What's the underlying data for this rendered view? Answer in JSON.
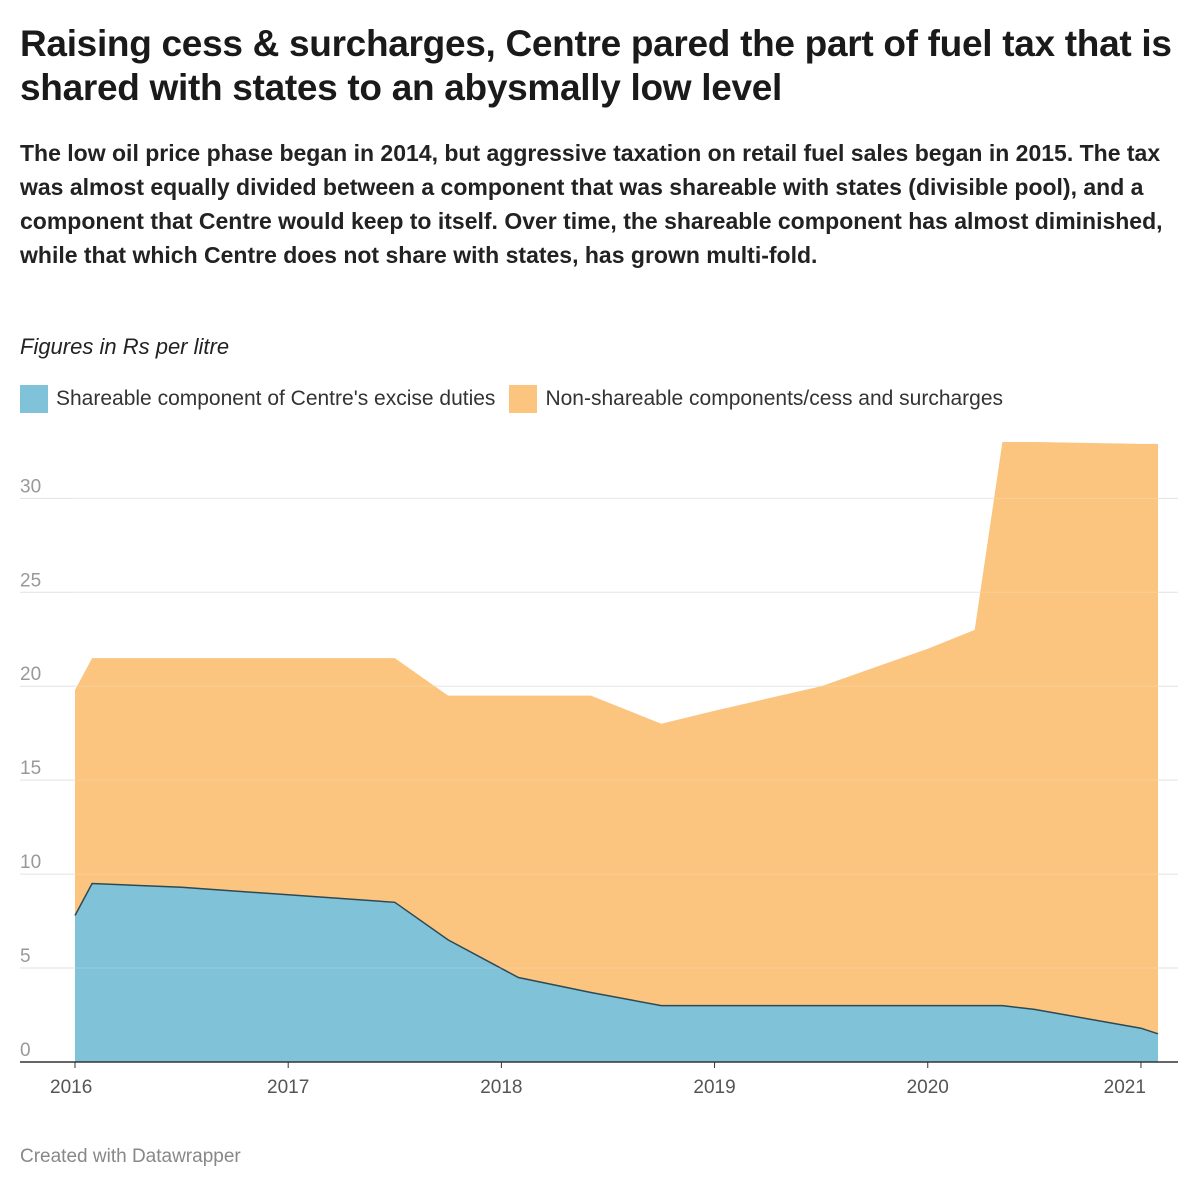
{
  "header": {
    "title": "Raising cess & surcharges, Centre pared the part of fuel tax that is shared with states to an abysmally low level",
    "subtitle": "The low oil price phase began in 2014, but aggressive taxation on retail fuel sales began in 2015. The tax was almost equally divided between a component that was shareable with states (divisible pool), and a component that Centre would keep to itself. Over time, the shareable component has almost diminished, while that which Centre does not share with states, has grown multi-fold.",
    "units_note": "Figures in Rs per litre"
  },
  "footer": {
    "credit": "Created with Datawrapper"
  },
  "chart_data": {
    "type": "area",
    "stacked": true,
    "x_unit": "year",
    "x": [
      2016.0,
      2016.08,
      2016.5,
      2017.0,
      2017.5,
      2017.75,
      2018.08,
      2018.42,
      2018.75,
      2019.0,
      2019.5,
      2020.0,
      2020.22,
      2020.35,
      2020.5,
      2021.0,
      2021.08
    ],
    "series": [
      {
        "name": "Shareable component of Centre's excise duties",
        "color": "#80c2d8",
        "values": [
          7.8,
          9.5,
          9.3,
          8.9,
          8.5,
          6.5,
          4.5,
          3.7,
          3.0,
          3.0,
          3.0,
          3.0,
          3.0,
          3.0,
          2.8,
          1.8,
          1.5
        ]
      },
      {
        "name": "Non-shareable components/cess and surcharges",
        "color": "#fbc57f",
        "values": [
          12.0,
          12.0,
          12.2,
          12.6,
          13.0,
          13.0,
          15.0,
          15.8,
          15.0,
          15.7,
          17.0,
          19.0,
          20.0,
          30.0,
          30.2,
          31.1,
          31.4
        ]
      }
    ],
    "x_ticks": [
      {
        "value": 2016,
        "label": "2016"
      },
      {
        "value": 2017,
        "label": "2017"
      },
      {
        "value": 2018,
        "label": "2018"
      },
      {
        "value": 2019,
        "label": "2019"
      },
      {
        "value": 2020,
        "label": "2020"
      },
      {
        "value": 2021,
        "label": "2021"
      }
    ],
    "y_ticks": [
      0,
      5,
      10,
      15,
      20,
      25,
      30
    ],
    "xlim": [
      2016.0,
      2021.08
    ],
    "ylim": [
      0,
      33
    ],
    "grid": "horizontal",
    "legend_position": "top-left",
    "title": "",
    "xlabel": "",
    "ylabel": ""
  }
}
